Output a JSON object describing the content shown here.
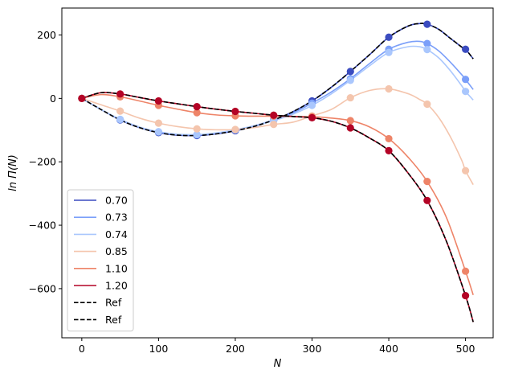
{
  "chart_data": {
    "type": "line",
    "title": "",
    "xlabel": "N",
    "ylabel": "ln Π(N)",
    "xlim": [
      -26,
      536
    ],
    "ylim": [
      -755,
      285
    ],
    "xticks": [
      0,
      100,
      200,
      300,
      400,
      500
    ],
    "yticks": [
      -600,
      -400,
      -200,
      0,
      200
    ],
    "xtick_labels": [
      "0",
      "100",
      "200",
      "300",
      "400",
      "500"
    ],
    "ytick_labels": [
      "−600",
      "−400",
      "−200",
      "0",
      "200"
    ],
    "grid": false,
    "legend_position": "lower-left",
    "marker_x": [
      0,
      50,
      100,
      150,
      200,
      250,
      300,
      350,
      400,
      450,
      500
    ],
    "series": [
      {
        "name": "0.70",
        "color": "#3b4cc0",
        "x": [
          0,
          25,
          50,
          75,
          100,
          125,
          150,
          175,
          200,
          225,
          250,
          275,
          300,
          325,
          350,
          375,
          400,
          425,
          440,
          450,
          465,
          480,
          495,
          500,
          510
        ],
        "y": [
          0,
          -35,
          -68,
          -92,
          -108,
          -116,
          -117,
          -112,
          -102,
          -88,
          -68,
          -42,
          -8,
          35,
          85,
          138,
          193,
          228,
          236,
          234,
          218,
          190,
          162,
          155,
          125
        ]
      },
      {
        "name": "0.73",
        "color": "#7b9ff9",
        "x": [
          0,
          25,
          50,
          75,
          100,
          125,
          150,
          175,
          200,
          225,
          250,
          275,
          300,
          325,
          350,
          375,
          400,
          425,
          440,
          450,
          465,
          480,
          495,
          500,
          510
        ],
        "y": [
          0,
          -35,
          -67,
          -91,
          -106,
          -114,
          -115,
          -110,
          -100,
          -86,
          -68,
          -46,
          -15,
          20,
          62,
          110,
          155,
          177,
          180,
          173,
          150,
          115,
          75,
          60,
          28
        ]
      },
      {
        "name": "0.74",
        "color": "#aac7fd",
        "x": [
          0,
          25,
          50,
          75,
          100,
          125,
          150,
          175,
          200,
          225,
          250,
          275,
          300,
          325,
          350,
          375,
          400,
          425,
          440,
          450,
          465,
          480,
          495,
          500,
          510
        ],
        "y": [
          0,
          -35,
          -66,
          -90,
          -105,
          -113,
          -114,
          -109,
          -99,
          -86,
          -70,
          -50,
          -22,
          14,
          57,
          103,
          145,
          163,
          163,
          154,
          128,
          88,
          40,
          22,
          -5
        ]
      },
      {
        "name": "0.85",
        "color": "#f4c5ad",
        "x": [
          0,
          25,
          50,
          75,
          100,
          125,
          150,
          175,
          200,
          225,
          250,
          275,
          300,
          325,
          350,
          375,
          400,
          425,
          440,
          450,
          465,
          480,
          495,
          500,
          510
        ],
        "y": [
          0,
          -20,
          -40,
          -62,
          -78,
          -89,
          -96,
          -99,
          -98,
          -92,
          -82,
          -75,
          -55,
          -35,
          2,
          25,
          30,
          15,
          -3,
          -18,
          -60,
          -120,
          -195,
          -228,
          -272
        ]
      },
      {
        "name": "1.10",
        "color": "#ee8468",
        "x": [
          0,
          25,
          50,
          75,
          100,
          125,
          150,
          175,
          200,
          225,
          250,
          275,
          300,
          325,
          350,
          375,
          400,
          425,
          450,
          475,
          500,
          510
        ],
        "y": [
          0,
          12,
          5,
          -8,
          -22,
          -34,
          -45,
          -52,
          -55,
          -56,
          -56,
          -57,
          -58,
          -62,
          -70,
          -90,
          -127,
          -185,
          -262,
          -375,
          -545,
          -620
        ]
      },
      {
        "name": "1.20",
        "color": "#b40426",
        "x": [
          0,
          25,
          50,
          75,
          100,
          125,
          150,
          175,
          200,
          225,
          250,
          275,
          300,
          325,
          350,
          375,
          400,
          425,
          450,
          475,
          500,
          510
        ],
        "y": [
          0,
          18,
          14,
          3,
          -8,
          -17,
          -26,
          -34,
          -41,
          -47,
          -53,
          -57,
          -61,
          -72,
          -93,
          -125,
          -165,
          -235,
          -322,
          -450,
          -622,
          -705
        ]
      },
      {
        "name": "Ref",
        "color": "#000000",
        "dashed": true,
        "ref_of": "0.70"
      },
      {
        "name": "Ref",
        "color": "#000000",
        "dashed": true,
        "ref_of": "1.20"
      }
    ]
  }
}
